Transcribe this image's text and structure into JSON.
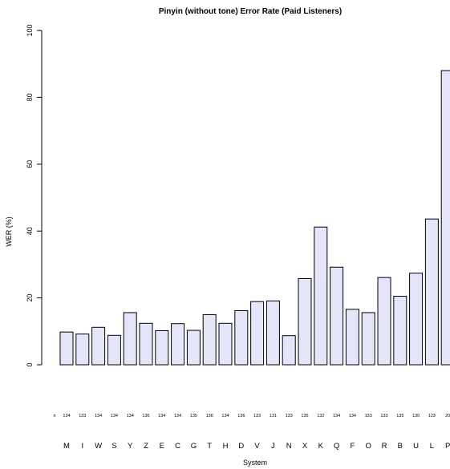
{
  "chart_data": {
    "type": "bar",
    "title": "Pinyin (without tone) Error Rate (Paid Listeners)",
    "xlabel": "System",
    "ylabel": "WER (%)",
    "ylim": [
      0,
      100
    ],
    "yticks": [
      0,
      20,
      40,
      60,
      80,
      100
    ],
    "grid": false,
    "n_prefix": "n",
    "categories": [
      "M",
      "I",
      "W",
      "S",
      "Y",
      "Z",
      "E",
      "C",
      "G",
      "T",
      "H",
      "D",
      "V",
      "J",
      "N",
      "X",
      "K",
      "Q",
      "F",
      "O",
      "R",
      "B",
      "U",
      "L",
      "P"
    ],
    "n_values": [
      "134",
      "133",
      "134",
      "134",
      "134",
      "136",
      "134",
      "134",
      "135",
      "136",
      "134",
      "136",
      "133",
      "131",
      "133",
      "135",
      "132",
      "134",
      "134",
      "133",
      "133",
      "135",
      "130",
      "123",
      "20"
    ],
    "values": [
      9.8,
      9.2,
      11.2,
      8.8,
      15.6,
      12.4,
      10.2,
      12.3,
      10.3,
      15.0,
      12.4,
      16.2,
      18.9,
      19.1,
      8.7,
      25.8,
      41.2,
      29.2,
      16.6,
      15.6,
      26.1,
      20.5,
      27.4,
      43.6,
      88.0
    ]
  }
}
